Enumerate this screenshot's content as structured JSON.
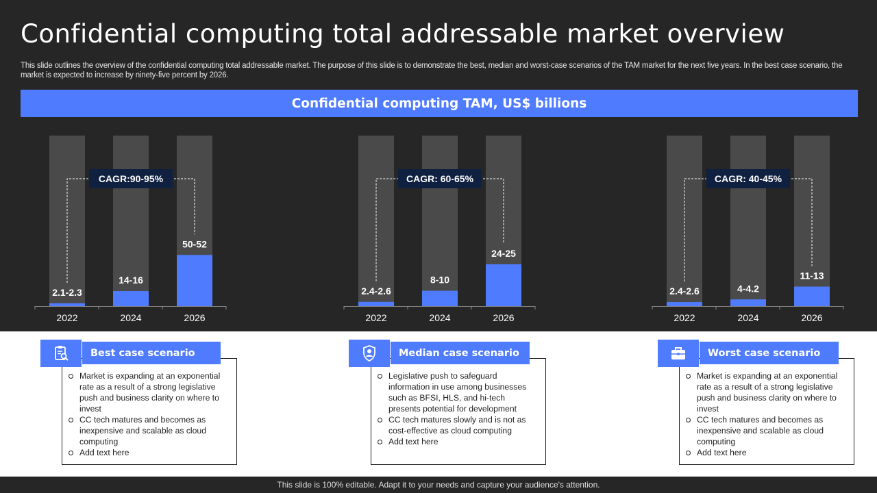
{
  "slide": {
    "title": "Confidential computing total addressable market overview",
    "description": "This slide outlines the overview of the confidential computing total addressable market. The purpose of this slide is to demonstrate the best, median and worst-case scenarios of the TAM  market for the next five years. In the best case scenario, the market is expected to increase by ninety-five percent by 2026.",
    "banner": "Confidential computing TAM, US$ billions",
    "footer": "This slide is 100% editable. Adapt it to your needs and capture your audience's attention."
  },
  "colors": {
    "background": "#262626",
    "accent": "#4f7bff",
    "bar_track": "#4a4a4a",
    "cagr_badge": "#102040",
    "card_background": "#ffffff"
  },
  "chart_data": [
    {
      "type": "bar",
      "categories": [
        "2022",
        "2024",
        "2026"
      ],
      "values": [
        2.2,
        15,
        51
      ],
      "value_labels": [
        "2.1-2.3",
        "14-16",
        "50-52"
      ],
      "annotation": "CAGR:90-95%",
      "ylim": [
        0,
        170
      ]
    },
    {
      "type": "bar",
      "categories": [
        "2022",
        "2024",
        "2026"
      ],
      "values": [
        2.5,
        9,
        24.5
      ],
      "value_labels": [
        "2.4-2.6",
        "8-10",
        "24-25"
      ],
      "annotation": "CAGR: 60-65%",
      "ylim": [
        0,
        100
      ]
    },
    {
      "type": "bar",
      "categories": [
        "2022",
        "2024",
        "2026"
      ],
      "values": [
        2.5,
        4.1,
        12
      ],
      "value_labels": [
        "2.4-2.6",
        "4-4.2",
        "11-13"
      ],
      "annotation": "CAGR: 40-45%",
      "ylim": [
        0,
        105
      ]
    }
  ],
  "cards": [
    {
      "title": "Best case scenario",
      "icon": "clipboard-search-icon",
      "bullets": [
        "Market is expanding at an exponential rate as a result of a strong legislative push and business clarity on where to invest",
        "CC tech matures and becomes as inexpensive and scalable as cloud computing",
        "Add text here"
      ]
    },
    {
      "title": "Median case scenario",
      "icon": "person-shield-icon",
      "bullets": [
        "Legislative push to safeguard information in use among businesses such as BFSI, HLS, and hi-tech presents potential for development",
        "CC tech matures slowly and is not as cost-effective as cloud computing",
        "Add text here"
      ]
    },
    {
      "title": "Worst case scenario",
      "icon": "briefcase-icon",
      "bullets": [
        "Market is expanding at an exponential rate as a result of a strong legislative push and business clarity on where to invest",
        "CC tech matures and becomes as inexpensive and scalable as cloud computing",
        "Add text here"
      ]
    }
  ]
}
